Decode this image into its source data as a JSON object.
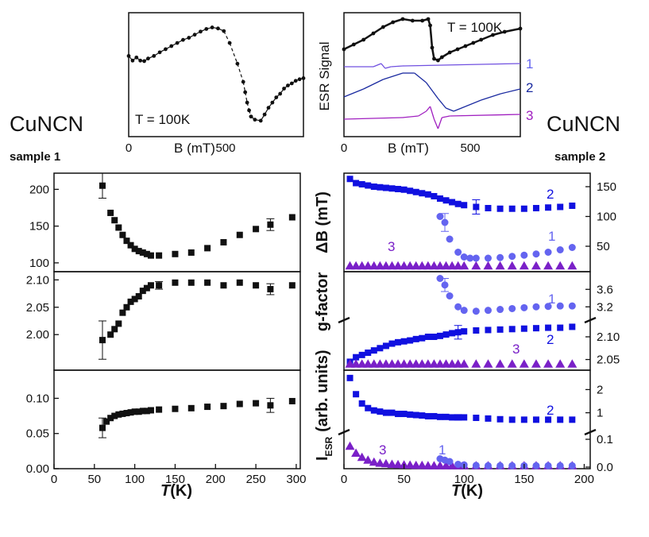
{
  "labels": {
    "compound_left": "CuNCN",
    "compound_right": "CuNCN",
    "sample_left": "sample 1",
    "sample_right": "sample 2",
    "x_axis_symbol": "T",
    "x_axis_unit": "(K)"
  },
  "colors": {
    "black": "#111111",
    "series1": "#6464f0",
    "series2": "#1010e0",
    "series3": "#7a20c8",
    "trace2": "#1a2aa0",
    "trace1": "#7050e0",
    "trace3": "#a020c0"
  },
  "chart_data": [
    {
      "id": "inset-left",
      "type": "line",
      "title": "",
      "annotation": "T = 100K",
      "xlabel": "B (mT)",
      "xlim": [
        0,
        900
      ],
      "xticks": [
        "0",
        "500"
      ],
      "description_series": "ESR derivative spectrum, sample 1",
      "series": [
        {
          "name": "spectrum",
          "x": [
            0,
            20,
            40,
            60,
            80,
            100,
            130,
            160,
            190,
            220,
            250,
            280,
            310,
            340,
            370,
            400,
            430,
            460,
            490,
            520,
            560,
            590,
            600,
            610,
            620,
            630
          ],
          "y": [
            0.45,
            0.36,
            0.42,
            0.36,
            0.35,
            0.4,
            0.45,
            0.52,
            0.58,
            0.64,
            0.7,
            0.76,
            0.8,
            0.86,
            0.92,
            0.97,
            1.0,
            0.98,
            0.93,
            0.7,
            0.3,
            -0.05,
            -0.25,
            -0.45,
            -0.6,
            -0.72
          ]
        },
        {
          "name": "spectrum-tail",
          "x": [
            630,
            650,
            680,
            700,
            720,
            740,
            760,
            780,
            800,
            820,
            840,
            860,
            880,
            900
          ],
          "y": [
            -0.72,
            -0.78,
            -0.8,
            -0.68,
            -0.55,
            -0.45,
            -0.35,
            -0.28,
            -0.18,
            -0.12,
            -0.08,
            -0.03,
            0.0,
            0.02
          ]
        }
      ]
    },
    {
      "id": "inset-right",
      "type": "line",
      "annotation": "T = 100K",
      "ylabel": "ESR Signal",
      "xlabel": "B (mT)",
      "xlim": [
        0,
        900
      ],
      "xticks": [
        "0",
        "500"
      ],
      "series_labels": [
        "1",
        "2",
        "3"
      ]
    },
    {
      "id": "left-deltaB",
      "type": "scatter",
      "xlim": [
        0,
        305
      ],
      "ylim": [
        88,
        222
      ],
      "yticks": [
        "100",
        "150",
        "200"
      ],
      "x": [
        60,
        70,
        75,
        80,
        85,
        90,
        95,
        100,
        105,
        110,
        115,
        120,
        130,
        150,
        170,
        190,
        210,
        230,
        250,
        268,
        295
      ],
      "y": [
        205,
        168,
        158,
        148,
        138,
        130,
        124,
        119,
        116,
        114,
        112,
        110,
        110,
        112,
        114,
        120,
        128,
        138,
        146,
        152,
        162
      ],
      "errorbars": [
        {
          "x": 60,
          "y": 205,
          "err": 17
        },
        {
          "x": 268,
          "y": 152,
          "err": 8
        }
      ]
    },
    {
      "id": "left-gfactor",
      "type": "scatter",
      "xlim": [
        0,
        305
      ],
      "ylim": [
        1.935,
        2.115
      ],
      "yticks": [
        "2.00",
        "2.05",
        "2.10"
      ],
      "x": [
        60,
        70,
        75,
        80,
        85,
        90,
        95,
        100,
        105,
        110,
        115,
        120,
        130,
        150,
        170,
        190,
        210,
        230,
        250,
        268,
        295
      ],
      "y": [
        1.99,
        2.0,
        2.01,
        2.02,
        2.04,
        2.05,
        2.06,
        2.065,
        2.07,
        2.08,
        2.085,
        2.09,
        2.09,
        2.095,
        2.095,
        2.095,
        2.09,
        2.095,
        2.09,
        2.083,
        2.09
      ],
      "errorbars": [
        {
          "x": 60,
          "y": 1.99,
          "err": 0.035
        },
        {
          "x": 130,
          "y": 2.09,
          "err": 0.007
        },
        {
          "x": 268,
          "y": 2.083,
          "err": 0.01
        }
      ]
    },
    {
      "id": "left-intensity",
      "type": "scatter",
      "xlim": [
        0,
        305
      ],
      "xticks": [
        "0",
        "50",
        "100",
        "150",
        "200",
        "250",
        "300"
      ],
      "ylim": [
        0,
        0.14
      ],
      "yticks": [
        "0.00",
        "0.05",
        "0.10"
      ],
      "x": [
        60,
        65,
        70,
        75,
        80,
        85,
        90,
        95,
        100,
        105,
        110,
        115,
        120,
        130,
        150,
        170,
        190,
        210,
        230,
        250,
        268,
        295
      ],
      "y": [
        0.058,
        0.067,
        0.072,
        0.075,
        0.077,
        0.078,
        0.079,
        0.08,
        0.081,
        0.081,
        0.082,
        0.082,
        0.083,
        0.084,
        0.085,
        0.086,
        0.088,
        0.089,
        0.092,
        0.093,
        0.09,
        0.096
      ],
      "errorbars": [
        {
          "x": 60,
          "y": 0.058,
          "err": 0.014
        },
        {
          "x": 268,
          "y": 0.09,
          "err": 0.01
        }
      ]
    },
    {
      "id": "right-deltaB",
      "type": "scatter",
      "ylabel": "ΔB (mT)",
      "xlim": [
        0,
        205
      ],
      "yticks": [
        "50",
        "100",
        "150"
      ],
      "series_labels": [
        "1",
        "2",
        "3"
      ],
      "series": [
        {
          "name": "2",
          "x": [
            5,
            10,
            15,
            20,
            25,
            30,
            35,
            40,
            45,
            50,
            55,
            60,
            65,
            70,
            75,
            80,
            85,
            90,
            95,
            100,
            110,
            120,
            130,
            140,
            150,
            160,
            170,
            180,
            190
          ],
          "y": [
            163,
            156,
            154,
            152,
            150,
            149,
            148,
            147,
            146,
            145,
            143,
            141,
            139,
            137,
            134,
            130,
            127,
            124,
            121,
            119,
            116,
            114,
            113,
            113,
            113,
            114,
            115,
            116,
            118
          ]
        },
        {
          "name": "1",
          "x": [
            80,
            84,
            88,
            95,
            100,
            105,
            110,
            120,
            130,
            140,
            150,
            160,
            170,
            180,
            190
          ],
          "y": [
            100,
            90,
            62,
            40,
            32,
            30,
            30,
            30,
            31,
            33,
            35,
            37,
            40,
            44,
            48
          ]
        },
        {
          "name": "3",
          "x": [
            5,
            10,
            15,
            20,
            25,
            30,
            35,
            40,
            45,
            50,
            55,
            60,
            65,
            70,
            75,
            80,
            85,
            90,
            95,
            100,
            110,
            120,
            130,
            140,
            150,
            160,
            170,
            180,
            190
          ],
          "y": [
            17,
            17,
            17,
            17,
            17,
            17,
            17,
            17,
            17,
            17,
            17,
            17,
            17,
            17,
            17,
            17,
            17,
            17,
            17,
            17,
            17,
            17,
            17,
            17,
            17,
            17,
            17,
            17,
            17
          ]
        }
      ],
      "errorbars": [
        {
          "series": "2",
          "x": 110,
          "y": 116,
          "err": 12
        },
        {
          "series": "1",
          "x": 84,
          "y": 90,
          "err": 15
        }
      ]
    },
    {
      "id": "right-gfactor",
      "type": "scatter",
      "ylabel": "g-factor",
      "xlim": [
        0,
        205
      ],
      "yticks": [
        "2.05",
        "2.10",
        "3.2",
        "3.6"
      ],
      "axis_break": true,
      "series_labels": [
        "1",
        "2",
        "3"
      ],
      "series": [
        {
          "name": "1",
          "x": [
            80,
            84,
            88,
            95,
            100,
            110,
            120,
            130,
            140,
            150,
            160,
            170,
            180,
            190
          ],
          "y": [
            3.85,
            3.7,
            3.45,
            3.2,
            3.12,
            3.1,
            3.12,
            3.14,
            3.16,
            3.18,
            3.2,
            3.21,
            3.22,
            3.22
          ]
        },
        {
          "name": "2",
          "x": [
            5,
            10,
            15,
            20,
            25,
            30,
            35,
            40,
            45,
            50,
            55,
            60,
            65,
            70,
            75,
            80,
            85,
            90,
            95,
            100,
            110,
            120,
            130,
            140,
            150,
            160,
            170,
            180,
            190
          ],
          "y": [
            2.045,
            2.055,
            2.06,
            2.065,
            2.07,
            2.075,
            2.08,
            2.085,
            2.088,
            2.09,
            2.092,
            2.095,
            2.097,
            2.1,
            2.1,
            2.102,
            2.105,
            2.108,
            2.11,
            2.112,
            2.114,
            2.115,
            2.116,
            2.117,
            2.118,
            2.119,
            2.12,
            2.12,
            2.122
          ]
        },
        {
          "name": "3",
          "x": [
            5,
            10,
            15,
            20,
            25,
            30,
            35,
            40,
            45,
            50,
            55,
            60,
            65,
            70,
            75,
            80,
            85,
            90,
            95,
            100,
            110,
            120,
            130,
            140,
            150,
            160,
            170,
            180,
            190
          ],
          "y": [
            2.04,
            2.04,
            2.04,
            2.04,
            2.04,
            2.04,
            2.04,
            2.04,
            2.04,
            2.04,
            2.04,
            2.04,
            2.04,
            2.04,
            2.04,
            2.04,
            2.04,
            2.04,
            2.04,
            2.04,
            2.04,
            2.04,
            2.04,
            2.04,
            2.04,
            2.04,
            2.04,
            2.04,
            2.04
          ]
        }
      ]
    },
    {
      "id": "right-intensity",
      "type": "scatter",
      "ylabel": "I_ESR (arb. units)",
      "ylabel_main": "I",
      "ylabel_sub": "ESR",
      "ylabel_rest": "(arb. units)",
      "xlim": [
        0,
        205
      ],
      "xticks": [
        "0",
        "50",
        "100",
        "150",
        "200"
      ],
      "yticks": [
        "0.0",
        "0.1",
        "1",
        "2"
      ],
      "axis_break": true,
      "series_labels": [
        "1",
        "2",
        "3"
      ],
      "series": [
        {
          "name": "2",
          "x": [
            5,
            10,
            15,
            20,
            25,
            30,
            35,
            40,
            45,
            50,
            55,
            60,
            65,
            70,
            75,
            80,
            85,
            90,
            95,
            100,
            110,
            120,
            130,
            140,
            150,
            160,
            170,
            180,
            190
          ],
          "y": [
            2.5,
            1.8,
            1.4,
            1.2,
            1.1,
            1.05,
            1.0,
            1.0,
            0.95,
            0.95,
            0.92,
            0.9,
            0.88,
            0.85,
            0.85,
            0.82,
            0.82,
            0.8,
            0.8,
            0.8,
            0.78,
            0.75,
            0.72,
            0.7,
            0.7,
            0.7,
            0.7,
            0.7,
            0.7
          ]
        },
        {
          "name": "3",
          "x": [
            5,
            10,
            15,
            20,
            25,
            30,
            35,
            40,
            45,
            50,
            55,
            60,
            65,
            70,
            75,
            80,
            85,
            90,
            95,
            100,
            110,
            120,
            130,
            140,
            150,
            160,
            170,
            180,
            190
          ],
          "y": [
            0.075,
            0.05,
            0.035,
            0.025,
            0.018,
            0.014,
            0.012,
            0.01,
            0.009,
            0.008,
            0.007,
            0.006,
            0.006,
            0.005,
            0.005,
            0.005,
            0.005,
            0.005,
            0.005,
            0.005,
            0.005,
            0.005,
            0.005,
            0.005,
            0.005,
            0.005,
            0.005,
            0.005,
            0.005
          ]
        },
        {
          "name": "1",
          "x": [
            80,
            84,
            88,
            95,
            100,
            110,
            120,
            130,
            140,
            150,
            160,
            170,
            180,
            190
          ],
          "y": [
            0.03,
            0.025,
            0.02,
            0.01,
            0.008,
            0.006,
            0.005,
            0.005,
            0.005,
            0.005,
            0.005,
            0.005,
            0.005,
            0.005
          ]
        }
      ]
    }
  ]
}
